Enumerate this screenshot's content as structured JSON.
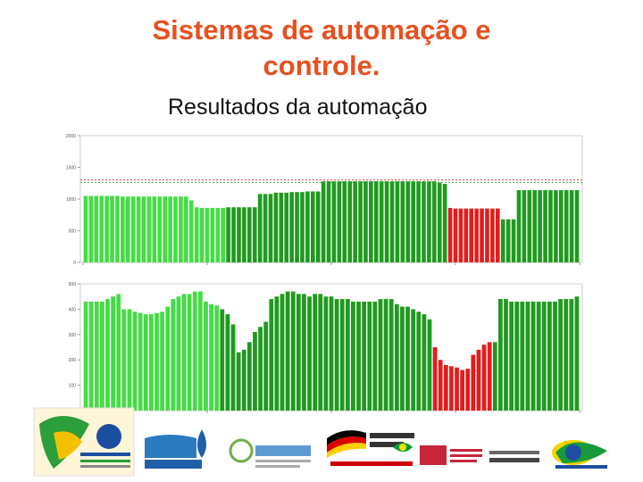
{
  "slide": {
    "title_line1": "Sistemas de automação e",
    "title_line2": "controle.",
    "subtitle": "Resultados da automação"
  },
  "colors": {
    "title": "#e8501e",
    "bar_light_green": "#44dd44",
    "bar_dark_green": "#1f9a1f",
    "bar_red": "#e21d1d",
    "threshold_red": "#d22",
    "threshold_green": "#3a3"
  },
  "chart_data": [
    {
      "type": "bar",
      "title": "",
      "ylabel": "",
      "xlabel": "",
      "ylim": [
        0,
        2000
      ],
      "y_ticks": [
        "0",
        "500",
        "1000",
        "1500",
        "2000"
      ],
      "x_tick_labels": [
        "",
        "",
        "",
        "",
        ""
      ],
      "grid": false,
      "thresholds": [
        1300,
        1260
      ],
      "segments": [
        {
          "color_role": "light_green",
          "values": [
            1050,
            1050,
            1050,
            1050,
            1050,
            1050,
            1050,
            1040,
            1040,
            1040,
            1040,
            1040,
            1040,
            1040,
            1040,
            1040,
            1040,
            1040,
            1040,
            1040,
            980,
            870,
            860,
            860,
            860,
            860,
            860
          ]
        },
        {
          "color_role": "dark_green",
          "values": [
            870,
            870,
            870,
            870,
            870,
            870,
            1080,
            1080,
            1080,
            1100,
            1100,
            1100,
            1110,
            1110,
            1110,
            1120,
            1120,
            1120,
            1280,
            1280,
            1280,
            1280,
            1280,
            1280,
            1280,
            1280,
            1280,
            1280,
            1280,
            1280,
            1280,
            1280,
            1280,
            1280,
            1280,
            1280,
            1280,
            1280,
            1280,
            1280,
            1260,
            1240
          ]
        },
        {
          "color_role": "red",
          "values": [
            860,
            850,
            850,
            850,
            850,
            850,
            850,
            850,
            850,
            850
          ]
        },
        {
          "color_role": "dark_green",
          "values": [
            680,
            680,
            680,
            1140,
            1140,
            1140,
            1140,
            1140,
            1140,
            1140,
            1140,
            1140,
            1140,
            1140,
            1140
          ]
        }
      ]
    },
    {
      "type": "bar",
      "title": "",
      "ylabel": "",
      "xlabel": "",
      "ylim": [
        0,
        500
      ],
      "y_ticks": [
        "100",
        "200",
        "300",
        "400",
        "500"
      ],
      "x_tick_labels": [
        "",
        "",
        "",
        "",
        ""
      ],
      "grid": false,
      "segments": [
        {
          "color_role": "light_green",
          "values": [
            430,
            430,
            430,
            430,
            440,
            450,
            460,
            400,
            400,
            390,
            385,
            380,
            380,
            385,
            390,
            410,
            440,
            450,
            460,
            460,
            470,
            470,
            430,
            420,
            415
          ]
        },
        {
          "color_role": "dark_green",
          "values": [
            400,
            380,
            340,
            230,
            240,
            270,
            310,
            330,
            350,
            440,
            450,
            460,
            470,
            470,
            460,
            460,
            450,
            460,
            460,
            450,
            450,
            440,
            440,
            440,
            430,
            430,
            430,
            430,
            430,
            440,
            440,
            440,
            420,
            410,
            410,
            400,
            390,
            380,
            360
          ]
        },
        {
          "color_role": "red",
          "values": [
            250,
            200,
            180,
            175,
            170,
            160,
            165,
            220,
            240,
            260,
            270
          ]
        },
        {
          "color_role": "dark_green",
          "values": [
            270,
            440,
            440,
            430,
            430,
            430,
            430,
            430,
            430,
            430,
            430,
            430,
            440,
            440,
            440,
            450
          ]
        }
      ]
    }
  ]
}
